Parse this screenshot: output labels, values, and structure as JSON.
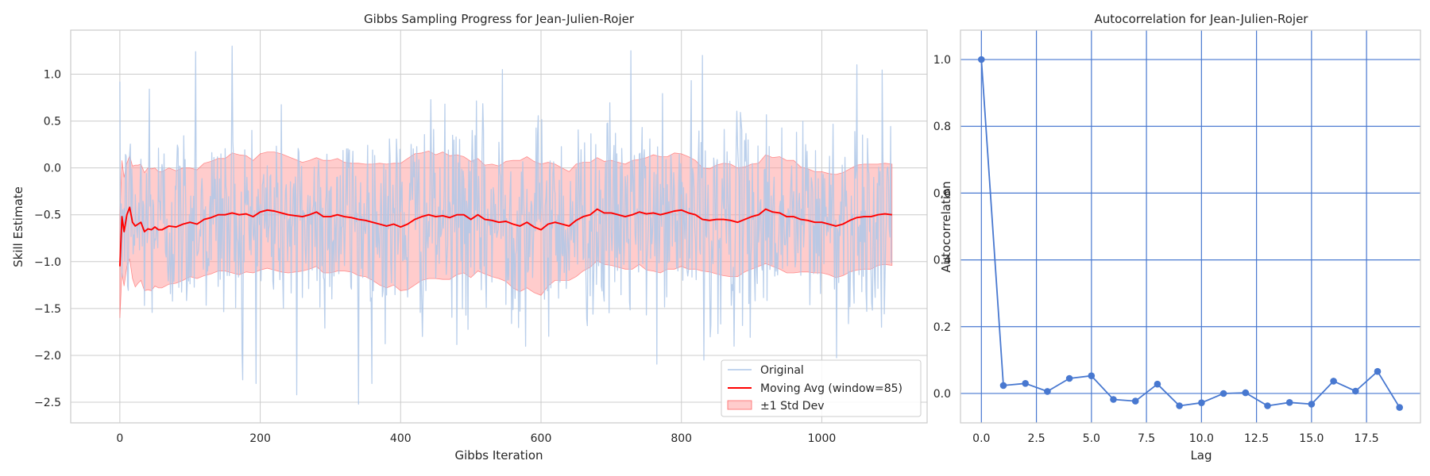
{
  "chart_data": [
    {
      "type": "line",
      "title": "Gibbs Sampling Progress for Jean-Julien-Rojer",
      "xlabel": "Gibbs Iteration",
      "ylabel": "Skill Estimate",
      "xlim": [
        -70,
        1150
      ],
      "ylim": [
        -2.72,
        1.47
      ],
      "x_ticks": [
        0,
        200,
        400,
        600,
        800,
        1000
      ],
      "x_tick_labels": [
        "0",
        "200",
        "400",
        "600",
        "800",
        "1000"
      ],
      "y_ticks": [
        1.0,
        0.5,
        0.0,
        -0.5,
        -1.0,
        -1.5,
        -2.0,
        -2.5
      ],
      "y_tick_labels": [
        "1.0",
        "0.5",
        "0.0",
        "−0.5",
        "−1.0",
        "−1.5",
        "−2.0",
        "−2.5"
      ],
      "grid": true,
      "legend_position": "lower-right",
      "n_iterations": 1100,
      "series": [
        {
          "name": "Original",
          "color": "#aec7e8",
          "summary": {
            "mean": -0.56,
            "std": 0.58,
            "min": -2.5,
            "max": 1.3
          },
          "peaks": [
            {
              "x": 42,
              "y": 0.84
            },
            {
              "x": 108,
              "y": 1.24
            },
            {
              "x": 160,
              "y": 1.3
            },
            {
              "x": 175,
              "y": -2.26
            },
            {
              "x": 252,
              "y": -2.42
            },
            {
              "x": 340,
              "y": -2.52
            },
            {
              "x": 545,
              "y": 1.05
            },
            {
              "x": 728,
              "y": 1.25
            },
            {
              "x": 830,
              "y": 1.2
            },
            {
              "x": 832,
              "y": -2.05
            },
            {
              "x": 1050,
              "y": 1.1
            },
            {
              "x": 1085,
              "y": -1.7
            }
          ]
        },
        {
          "name": "Moving Avg (window=85)",
          "color": "#ff0000",
          "x": [
            0,
            3,
            6,
            10,
            14,
            18,
            22,
            26,
            30,
            35,
            40,
            45,
            50,
            55,
            60,
            70,
            80,
            90,
            100,
            110,
            120,
            130,
            140,
            150,
            160,
            170,
            180,
            190,
            200,
            210,
            220,
            230,
            240,
            250,
            260,
            270,
            280,
            290,
            300,
            310,
            320,
            330,
            340,
            350,
            360,
            370,
            380,
            390,
            400,
            410,
            420,
            430,
            440,
            450,
            460,
            470,
            480,
            490,
            500,
            510,
            520,
            530,
            540,
            550,
            560,
            570,
            580,
            590,
            600,
            610,
            620,
            630,
            640,
            650,
            660,
            670,
            680,
            690,
            700,
            710,
            720,
            730,
            740,
            750,
            760,
            770,
            780,
            790,
            800,
            810,
            820,
            830,
            840,
            850,
            860,
            870,
            880,
            890,
            900,
            910,
            920,
            930,
            940,
            950,
            960,
            970,
            980,
            990,
            1000,
            1010,
            1020,
            1030,
            1040,
            1050,
            1060,
            1070,
            1080,
            1090,
            1100
          ],
          "y": [
            -1.05,
            -0.52,
            -0.68,
            -0.5,
            -0.42,
            -0.58,
            -0.62,
            -0.6,
            -0.58,
            -0.68,
            -0.65,
            -0.66,
            -0.63,
            -0.66,
            -0.66,
            -0.62,
            -0.63,
            -0.6,
            -0.58,
            -0.6,
            -0.55,
            -0.53,
            -0.5,
            -0.5,
            -0.48,
            -0.5,
            -0.49,
            -0.52,
            -0.47,
            -0.45,
            -0.46,
            -0.48,
            -0.5,
            -0.51,
            -0.52,
            -0.5,
            -0.47,
            -0.52,
            -0.52,
            -0.5,
            -0.52,
            -0.53,
            -0.55,
            -0.56,
            -0.58,
            -0.6,
            -0.62,
            -0.6,
            -0.63,
            -0.6,
            -0.55,
            -0.52,
            -0.5,
            -0.52,
            -0.51,
            -0.53,
            -0.5,
            -0.5,
            -0.55,
            -0.5,
            -0.55,
            -0.56,
            -0.58,
            -0.57,
            -0.6,
            -0.62,
            -0.58,
            -0.63,
            -0.66,
            -0.6,
            -0.58,
            -0.6,
            -0.62,
            -0.56,
            -0.52,
            -0.5,
            -0.44,
            -0.48,
            -0.48,
            -0.5,
            -0.52,
            -0.5,
            -0.47,
            -0.49,
            -0.48,
            -0.5,
            -0.48,
            -0.46,
            -0.45,
            -0.48,
            -0.5,
            -0.55,
            -0.56,
            -0.55,
            -0.55,
            -0.56,
            -0.58,
            -0.55,
            -0.52,
            -0.5,
            -0.44,
            -0.47,
            -0.48,
            -0.52,
            -0.52,
            -0.55,
            -0.56,
            -0.58,
            -0.58,
            -0.6,
            -0.62,
            -0.6,
            -0.56,
            -0.53,
            -0.52,
            -0.52,
            -0.5,
            -0.49,
            -0.5
          ]
        },
        {
          "name": "±1 Std Dev",
          "color": "#ff9999",
          "std": [
            0.55,
            0.6,
            0.58,
            0.55,
            0.55,
            0.6,
            0.65,
            0.63,
            0.62,
            0.63,
            0.65,
            0.65,
            0.63,
            0.62,
            0.62,
            0.62,
            0.6,
            0.6,
            0.58,
            0.58,
            0.6,
            0.6,
            0.6,
            0.6,
            0.64,
            0.64,
            0.62,
            0.6,
            0.62,
            0.62,
            0.63,
            0.63,
            0.62,
            0.6,
            0.58,
            0.58,
            0.58,
            0.6,
            0.6,
            0.6,
            0.58,
            0.58,
            0.6,
            0.6,
            0.62,
            0.65,
            0.66,
            0.65,
            0.68,
            0.7,
            0.7,
            0.68,
            0.68,
            0.66,
            0.68,
            0.66,
            0.64,
            0.62,
            0.62,
            0.6,
            0.58,
            0.6,
            0.6,
            0.64,
            0.68,
            0.7,
            0.7,
            0.7,
            0.7,
            0.66,
            0.62,
            0.6,
            0.58,
            0.6,
            0.58,
            0.56,
            0.55,
            0.55,
            0.56,
            0.56,
            0.56,
            0.58,
            0.56,
            0.6,
            0.62,
            0.62,
            0.6,
            0.62,
            0.6,
            0.6,
            0.58,
            0.55,
            0.55,
            0.58,
            0.6,
            0.6,
            0.58,
            0.56,
            0.56,
            0.55,
            0.58,
            0.58,
            0.6,
            0.6,
            0.6,
            0.56,
            0.55,
            0.54,
            0.54,
            0.54,
            0.55,
            0.55,
            0.55,
            0.56,
            0.56,
            0.56,
            0.54,
            0.54,
            0.54
          ]
        }
      ]
    },
    {
      "type": "line",
      "title": "Autocorrelation for Jean-Julien-Rojer",
      "xlabel": "Lag",
      "ylabel": "Autocorrelation",
      "xlim": [
        -0.95,
        19.95
      ],
      "ylim": [
        -0.088,
        1.088
      ],
      "x_ticks": [
        0,
        2.5,
        5,
        7.5,
        10,
        12.5,
        15,
        17.5
      ],
      "x_tick_labels": [
        "0.0",
        "2.5",
        "5.0",
        "7.5",
        "10.0",
        "12.5",
        "15.0",
        "17.5"
      ],
      "y_ticks": [
        1.0,
        0.8,
        0.6,
        0.4,
        0.2,
        0.0
      ],
      "y_tick_labels": [
        "1.0",
        "0.8",
        "0.6",
        "0.4",
        "0.2",
        "0.0"
      ],
      "grid": true,
      "series": [
        {
          "name": "Autocorrelation",
          "color": "#4878d0",
          "x": [
            0,
            1,
            2,
            3,
            4,
            5,
            6,
            7,
            8,
            9,
            10,
            11,
            12,
            13,
            14,
            15,
            16,
            17,
            18,
            19
          ],
          "y": [
            1.0,
            0.024,
            0.03,
            0.006,
            0.045,
            0.053,
            -0.018,
            -0.023,
            0.028,
            -0.037,
            -0.028,
            0.0,
            0.002,
            -0.037,
            -0.027,
            -0.032,
            0.037,
            0.007,
            0.066,
            -0.042
          ]
        }
      ]
    }
  ]
}
